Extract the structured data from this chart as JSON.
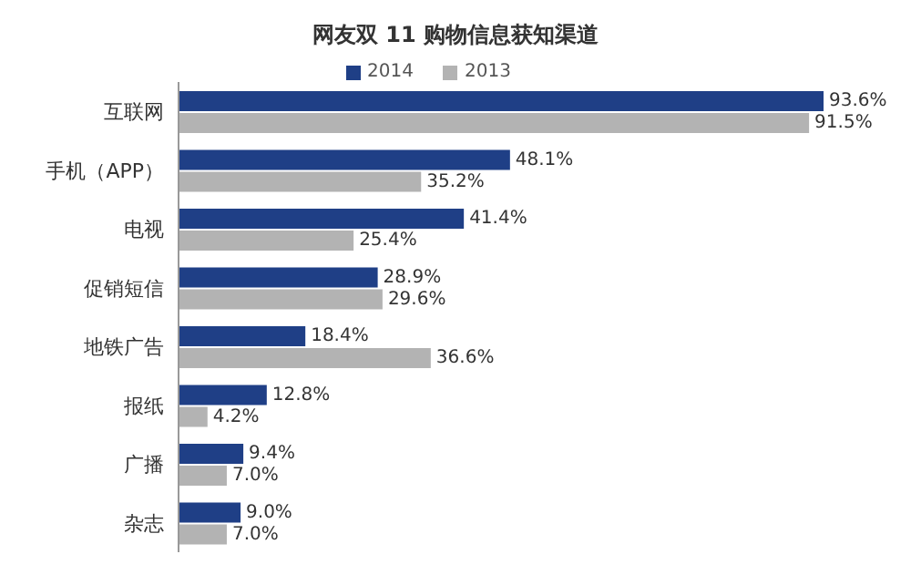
{
  "chart_data": {
    "type": "bar",
    "orientation": "horizontal",
    "title": "网友双 11 购物信息获知渠道",
    "tick_labels": "y",
    "categories": [
      "互联网",
      "手机（APP）",
      "电视",
      "促销短信",
      "地铁广告",
      "报纸",
      "广播",
      "杂志"
    ],
    "series": [
      {
        "name": "2014",
        "color": "#1f3f86",
        "values": [
          93.6,
          48.1,
          41.4,
          28.9,
          18.4,
          12.8,
          9.4,
          9.0
        ],
        "value_labels": [
          "93.6%",
          "48.1%",
          "41.4%",
          "28.9%",
          "18.4%",
          "12.8%",
          "9.4%",
          "9.0%"
        ]
      },
      {
        "name": "2013",
        "color": "#b3b3b3",
        "values": [
          91.5,
          35.2,
          25.4,
          29.6,
          36.6,
          4.2,
          7.0,
          7.0
        ],
        "value_labels": [
          "91.5%",
          "35.2%",
          "25.4%",
          "29.6%",
          "36.6%",
          "4.2%",
          "7.0%",
          "7.0%"
        ]
      }
    ],
    "legend": "top",
    "grid": false
  }
}
